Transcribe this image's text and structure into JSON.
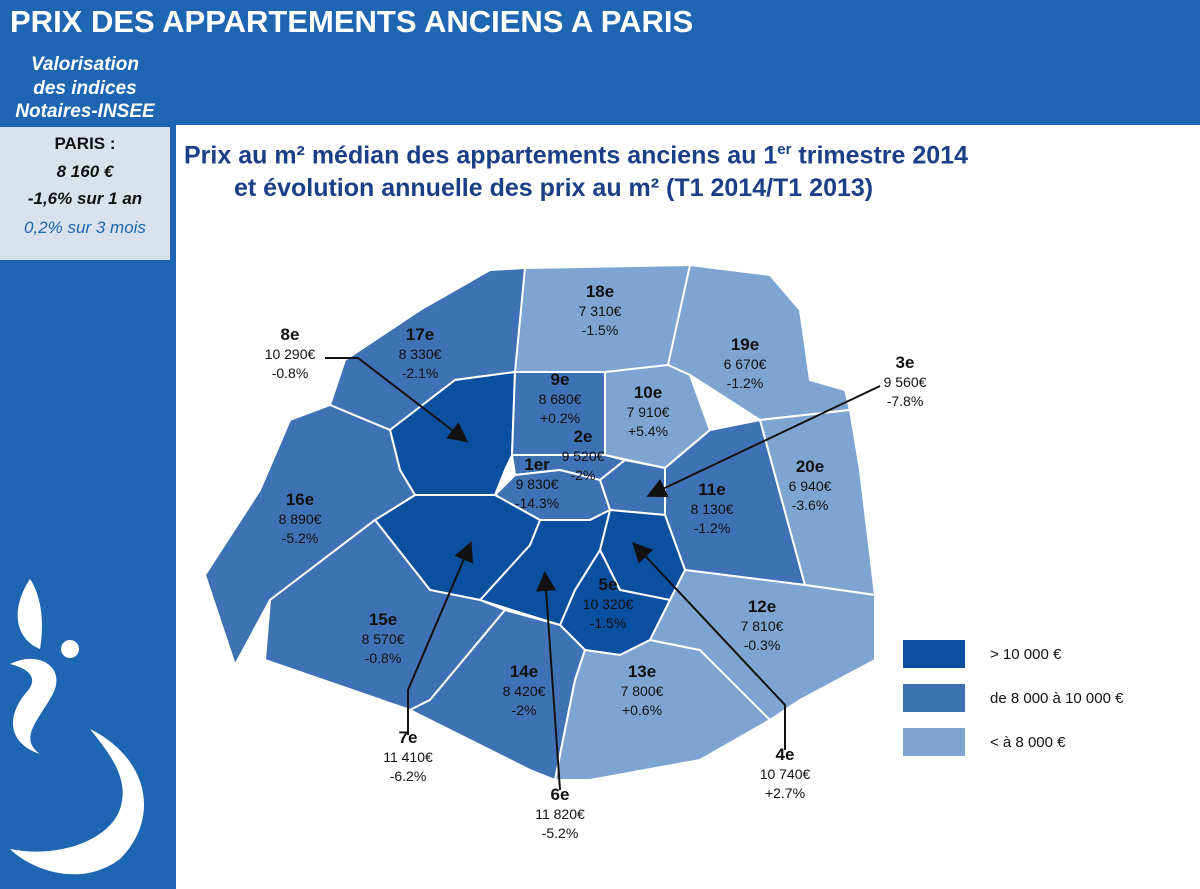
{
  "header": {
    "title": "PRIX DES APPARTEMENTS ANCIENS A PARIS"
  },
  "sidebar": {
    "lines": [
      "Valorisation",
      "des indices",
      "Notaires-INSEE"
    ]
  },
  "summary": {
    "title": "PARIS :",
    "price": "8 160 €",
    "annual": "-1,6% sur 1 an",
    "quarter": "0,2% sur 3 mois"
  },
  "subtitle": {
    "line1": "Prix au m² médian des appartements anciens au 1",
    "sup": "er",
    "line1_end": " trimestre 2014",
    "line2": "et évolution annuelle des prix au m² (T1 2014/T1 2013)"
  },
  "districts": [
    {
      "name": "18e",
      "price": "7 310€",
      "change": "-1.5%",
      "color": "#7ea5d2"
    },
    {
      "name": "17e",
      "price": "8 330€",
      "change": "-2.1%",
      "color": "#3f72b5"
    },
    {
      "name": "19e",
      "price": "6 670€",
      "change": "-1.2%",
      "color": "#7ea5d2"
    },
    {
      "name": "8e",
      "price": "10 290€",
      "change": "-0.8%",
      "color": "#0b4f9f"
    },
    {
      "name": "9e",
      "price": "8 680€",
      "change": "+0.2%",
      "color": "#3f72b5"
    },
    {
      "name": "10e",
      "price": "7 910€",
      "change": "+5.4%",
      "color": "#7ea5d2"
    },
    {
      "name": "2e",
      "price": "9 520€",
      "change": "-2%",
      "color": "#3f72b5"
    },
    {
      "name": "3e",
      "price": "9 560€",
      "change": "-7.8%",
      "color": "#3f72b5"
    },
    {
      "name": "1er",
      "price": "9 830€",
      "change": "-14.3%",
      "color": "#3f72b5"
    },
    {
      "name": "11e",
      "price": "8 130€",
      "change": "-1.2%",
      "color": "#3f72b5"
    },
    {
      "name": "20e",
      "price": "6 940€",
      "change": "-3.6%",
      "color": "#7ea5d2"
    },
    {
      "name": "4e",
      "price": "10 740€",
      "change": "+2.7%",
      "color": "#0b4f9f"
    },
    {
      "name": "5e",
      "price": "10 320€",
      "change": "-1.5%",
      "color": "#0b4f9f"
    },
    {
      "name": "6e",
      "price": "11 820€",
      "change": "-5.2%",
      "color": "#0b4f9f"
    },
    {
      "name": "7e",
      "price": "11 410€",
      "change": "-6.2%",
      "color": "#0b4f9f"
    },
    {
      "name": "16e",
      "price": "8 890€",
      "change": "-5.2%",
      "color": "#3f72b5"
    },
    {
      "name": "15e",
      "price": "8 570€",
      "change": "-0.8%",
      "color": "#3f72b5"
    },
    {
      "name": "14e",
      "price": "8 420€",
      "change": "-2%",
      "color": "#3f72b5"
    },
    {
      "name": "13e",
      "price": "7 800€",
      "change": "+0.6%",
      "color": "#7ea5d2"
    },
    {
      "name": "12e",
      "price": "7 810€",
      "change": "-0.3%",
      "color": "#7ea5d2"
    }
  ],
  "legend": [
    {
      "label": "> 10 000 €",
      "color": "#0b4f9f"
    },
    {
      "label": "de 8 000 à  10 000 €",
      "color": "#3f72b5"
    },
    {
      "label": "< à 8 000 €",
      "color": "#7ea5d2"
    }
  ]
}
